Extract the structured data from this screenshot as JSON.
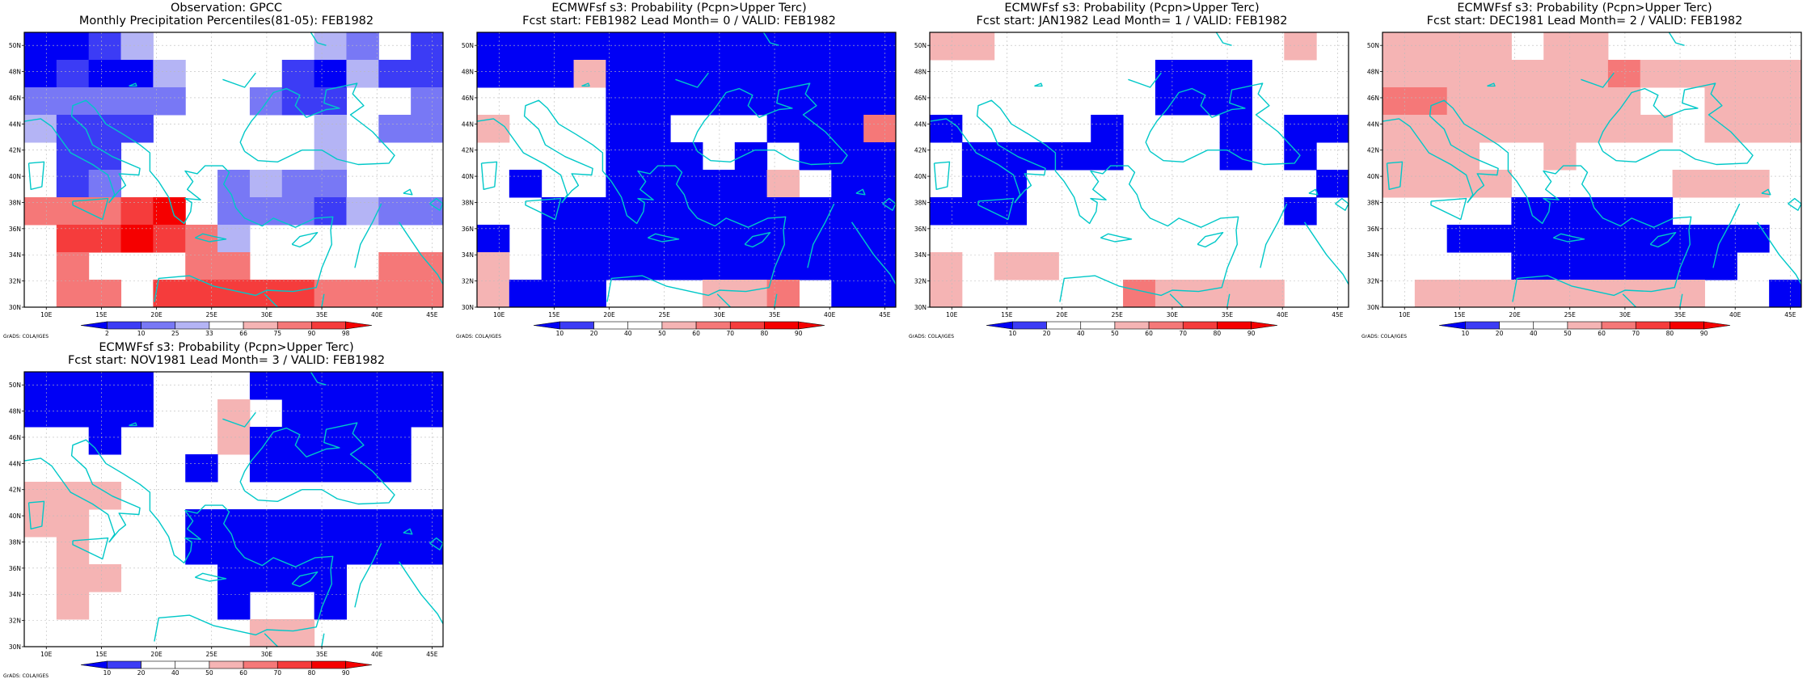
{
  "credit": "GrADS: COLA/IGES",
  "lon_labels": [
    "10E",
    "15E",
    "20E",
    "25E",
    "30E",
    "35E",
    "40E",
    "45E"
  ],
  "lat_labels": [
    "50N",
    "48N",
    "46N",
    "44N",
    "42N",
    "40N",
    "38N",
    "36N",
    "34N",
    "32N",
    "30N"
  ],
  "colors": {
    "levels": [
      "#0000f5",
      "#3c3cf5",
      "#7878f5",
      "#b4b4f5",
      "#ffffff",
      "#f5b4b4",
      "#f57878",
      "#f53c3c",
      "#f50000"
    ],
    "coast": "#00c8c8",
    "grid": "#bbbbbb"
  },
  "observation_colorbar": {
    "labels": [
      "2",
      "10",
      "25",
      "33",
      "66",
      "75",
      "90",
      "98"
    ],
    "colors": [
      "#0000f5",
      "#3c3cf5",
      "#7878f5",
      "#b4b4f5",
      "#ffffff",
      "#f5b4b4",
      "#f57878",
      "#f53c3c",
      "#f50000"
    ]
  },
  "forecast_colorbar": {
    "labels": [
      "10",
      "20",
      "40",
      "50",
      "60",
      "70",
      "80",
      "90"
    ],
    "colors": [
      "#0000f5",
      "#3c3cf5",
      "#ffffff",
      "#ffffff",
      "#f5b4b4",
      "#f57878",
      "#f53c3c",
      "#f50000",
      "#f50000"
    ]
  },
  "panels": [
    {
      "id": "obs",
      "title_line1": "Observation: GPCC",
      "title_line2": "Monthly Precipitation Percentiles(81-05): FEB1982",
      "colorbar": "observation",
      "grid": [
        "0013444443241",
        "0100344410311",
        "2222244211442",
        "3111444443422",
        "4114444443444",
        "4124442322444",
        "6667842221322",
        "4778763444444",
        "4644466444466",
        "4664777776666"
      ]
    },
    {
      "id": "lead0",
      "title_line1": "ECMWFsf s3: Probability (Pcpn>Upper Terc)",
      "title_line2": "Fcst start: FEB1982  Lead Month= 0 / VALID: FEB1982",
      "colorbar": "forecast",
      "grid": [
        "0000000000000",
        "0005000000000",
        "4444000000000",
        "5444004440006",
        "4444000404000",
        "4044000005400",
        "4400000000000",
        "0400000000000",
        "5400000000000",
        "5000444556400"
      ]
    },
    {
      "id": "lead1",
      "title_line1": "ECMWFsf s3: Probability (Pcpn>Upper Terc)",
      "title_line2": "Fcst start: JAN1982  Lead Month= 1 / VALID: FEB1982",
      "colorbar": "forecast",
      "grid": [
        "5544444444454",
        "4444444000444",
        "4444444000444",
        "0444404440400",
        "4000004440404",
        "4004444444440",
        "0004444444404",
        "4444444444444",
        "5455444444444",
        "5444446555544"
      ]
    },
    {
      "id": "lead2",
      "title_line1": "ECMWFsf s3: Probability (Pcpn>Upper Terc)",
      "title_line2": "Fcst start: DEC1981  Lead Month= 2 / VALID: FEB1982",
      "colorbar": "forecast",
      "grid": [
        "5555455444444",
        "5555555655555",
        "6655555544555",
        "5555555554555",
        "5554454444444",
        "5555444445554",
        "4444000004444",
        "4400000000004",
        "4444000000044",
        "4555555555440"
      ]
    },
    {
      "id": "lead3",
      "title_line1": "ECMWFsf s3: Probability (Pcpn>Upper Terc)",
      "title_line2": "Fcst start: NOV1981  Lead Month= 3 / VALID: FEB1982",
      "colorbar": "forecast",
      "grid": [
        "0000444000000",
        "0000445400000",
        "4404445000004",
        "4444404000004",
        "5554444444444",
        "5544400000000",
        "4544400000000",
        "4554440000444",
        "4544440440444",
        "4444444554444"
      ]
    }
  ]
}
